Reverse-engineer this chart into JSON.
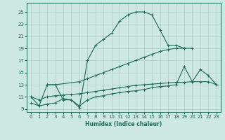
{
  "xlabel": "Humidex (Indice chaleur)",
  "bg_color": "#cce8e0",
  "grid_color": "#aaccc4",
  "line_color": "#1a6b5a",
  "xlim": [
    -0.5,
    23.5
  ],
  "ylim": [
    8.5,
    26.5
  ],
  "yticks": [
    9,
    11,
    13,
    15,
    17,
    19,
    21,
    23,
    25
  ],
  "xticks": [
    0,
    1,
    2,
    3,
    4,
    5,
    6,
    7,
    8,
    9,
    10,
    11,
    12,
    13,
    14,
    15,
    16,
    17,
    18,
    19,
    20,
    21,
    22,
    23
  ],
  "line1_x": [
    0,
    1,
    2,
    3,
    4,
    5,
    6,
    7,
    8,
    9,
    10,
    11,
    12,
    13,
    14,
    15,
    16,
    17,
    18,
    19
  ],
  "line1_y": [
    11,
    9.5,
    13,
    13,
    10.5,
    10.5,
    9.2,
    17,
    19.5,
    20.5,
    21.5,
    23.5,
    24.5,
    25,
    25,
    24.5,
    22,
    19.5,
    19.5,
    19
  ],
  "line2_x": [
    2,
    3,
    6,
    7,
    8,
    9,
    10,
    11,
    12,
    13,
    14,
    15,
    16,
    17,
    18,
    19,
    20
  ],
  "line2_y": [
    13,
    13,
    13.5,
    14,
    14.5,
    15,
    15.5,
    16,
    16.5,
    17,
    17.5,
    18,
    18.5,
    18.8,
    19,
    19,
    19
  ],
  "line3_x": [
    0,
    1,
    2,
    3,
    4,
    5,
    6,
    7,
    8,
    9,
    10,
    11,
    12,
    13,
    14,
    15,
    16,
    17,
    18,
    19,
    20,
    21,
    22,
    23
  ],
  "line3_y": [
    11,
    10.5,
    11,
    11.2,
    11.3,
    11.4,
    11.5,
    11.7,
    11.9,
    12.1,
    12.3,
    12.5,
    12.7,
    12.9,
    13.0,
    13.1,
    13.2,
    13.3,
    13.4,
    13.4,
    13.5,
    13.5,
    13.5,
    13.0
  ],
  "line4_x": [
    0,
    1,
    2,
    3,
    4,
    5,
    6,
    7,
    8,
    9,
    10,
    11,
    12,
    13,
    14,
    15,
    16,
    17,
    18,
    19,
    20,
    21,
    22,
    23
  ],
  "line4_y": [
    10.0,
    9.5,
    9.8,
    10.0,
    10.7,
    10.5,
    9.5,
    10.5,
    11.0,
    11.2,
    11.5,
    11.7,
    11.9,
    12.0,
    12.2,
    12.5,
    12.7,
    12.8,
    13.0,
    16.0,
    13.5,
    15.5,
    14.5,
    13.0
  ]
}
